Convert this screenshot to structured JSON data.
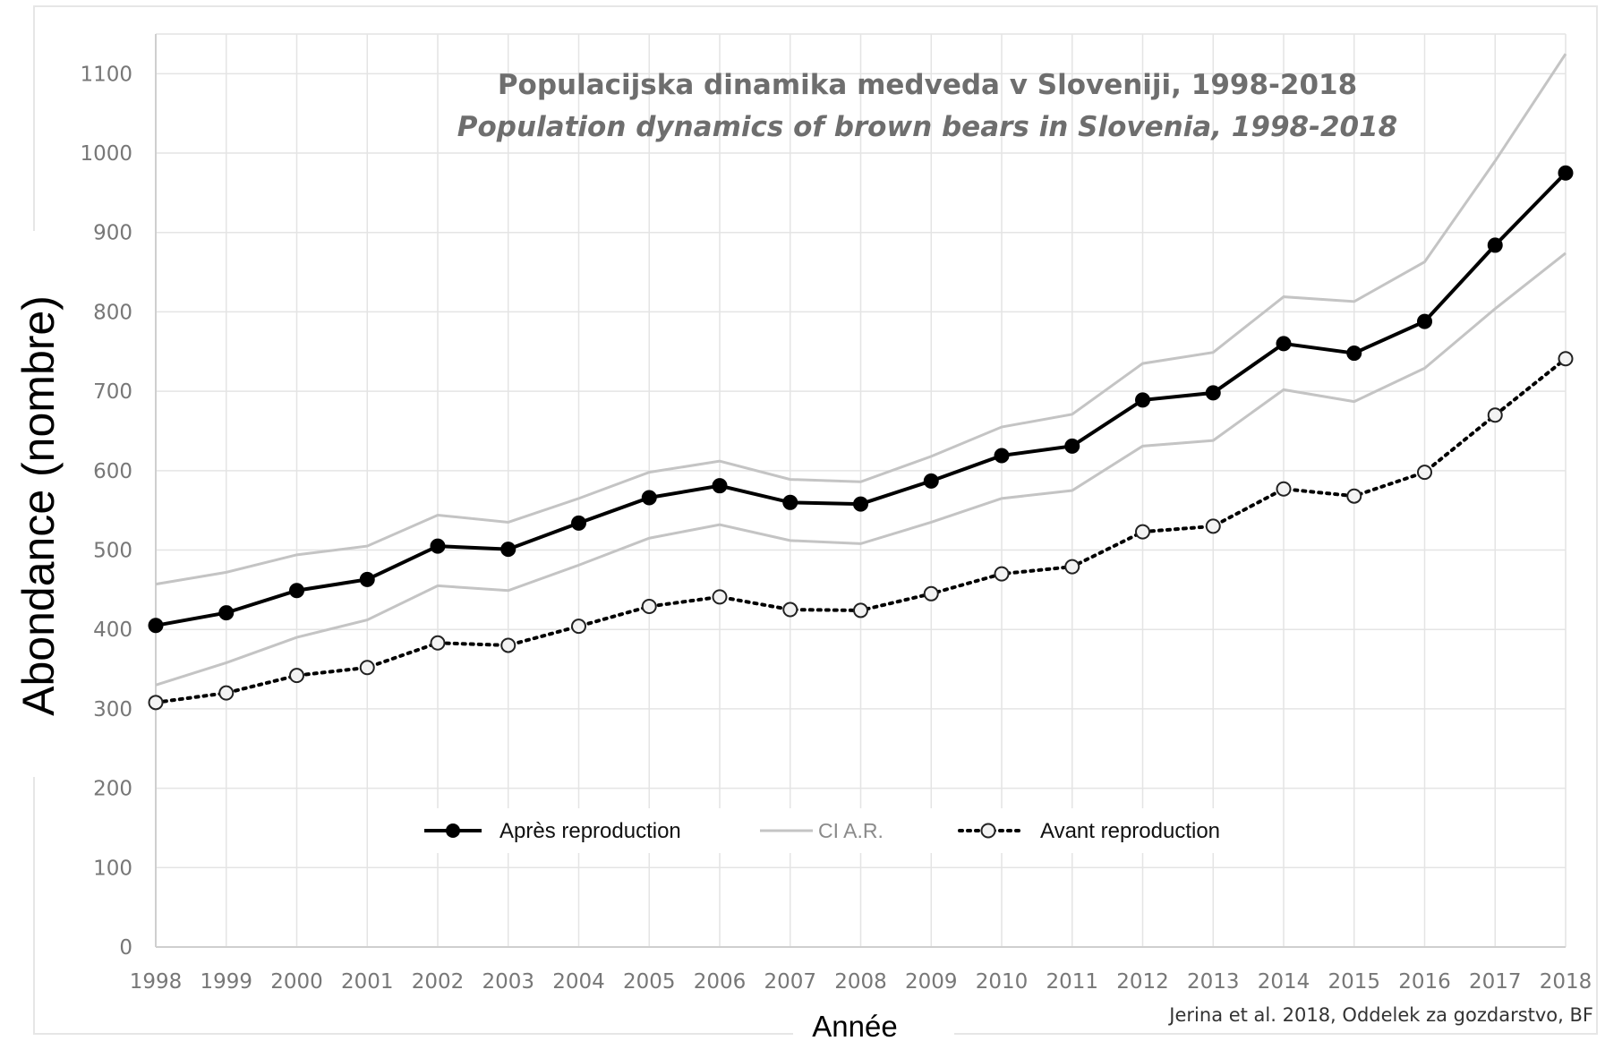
{
  "chart_data": {
    "type": "line",
    "title": "Populacijska dinamika medveda v Sloveniji, 1998-2018",
    "subtitle": "Population dynamics of brown bears in Slovenia, 1998-2018",
    "xlabel": "Année",
    "ylabel": "Abondance (nombre)",
    "source": "Jerina et al. 2018, Oddelek za gozdarstvo, BF",
    "x": [
      "1998",
      "1999",
      "2000",
      "2001",
      "2002",
      "2003",
      "2004",
      "2005",
      "2006",
      "2007",
      "2008",
      "2009",
      "2010",
      "2011",
      "2012",
      "2013",
      "2014",
      "2015",
      "2016",
      "2017",
      "2018"
    ],
    "ylim": [
      0,
      1150
    ],
    "yticks": [
      0,
      100,
      200,
      300,
      400,
      500,
      600,
      700,
      800,
      900,
      1000,
      1100
    ],
    "grid": true,
    "legend_position": "bottom-center",
    "series": [
      {
        "name": "Après reproduction",
        "style": "solid-filled-markers",
        "color": "#000000",
        "values": [
          405,
          421,
          449,
          463,
          505,
          501,
          534,
          566,
          581,
          560,
          558,
          587,
          619,
          631,
          689,
          698,
          760,
          748,
          788,
          884,
          975
        ]
      },
      {
        "name": "CI A.R.",
        "style": "thin-line",
        "color": "#c4c4c4",
        "upper": [
          457,
          472,
          494,
          505,
          544,
          535,
          565,
          598,
          612,
          589,
          586,
          618,
          655,
          671,
          735,
          749,
          819,
          813,
          863,
          990,
          1125
        ],
        "lower": [
          330,
          358,
          390,
          412,
          455,
          449,
          481,
          515,
          532,
          512,
          508,
          535,
          565,
          575,
          631,
          638,
          702,
          687,
          729,
          804,
          874
        ]
      },
      {
        "name": "Avant reproduction",
        "style": "dotted-hollow-markers",
        "color": "#000000",
        "values": [
          308,
          320,
          342,
          352,
          383,
          380,
          404,
          429,
          441,
          425,
          424,
          445,
          470,
          479,
          523,
          530,
          577,
          568,
          598,
          670,
          741
        ]
      }
    ]
  }
}
